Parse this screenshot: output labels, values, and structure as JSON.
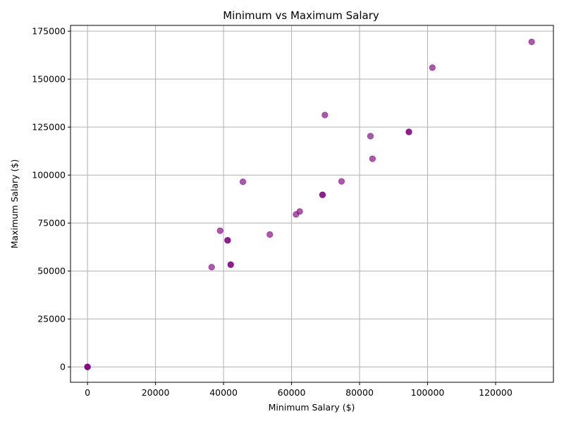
{
  "chart_data": {
    "type": "scatter",
    "title": "Minimum vs Maximum Salary",
    "xlabel": "Minimum Salary ($)",
    "ylabel": "Maximum Salary ($)",
    "xlim": [
      -5000,
      137000
    ],
    "ylim": [
      -8000,
      178000
    ],
    "xticks": [
      0,
      20000,
      40000,
      60000,
      80000,
      100000,
      120000
    ],
    "yticks": [
      0,
      25000,
      50000,
      75000,
      100000,
      125000,
      150000,
      175000
    ],
    "grid": true,
    "marker_color": "#800080",
    "marker_alpha": 0.65,
    "points": [
      {
        "x": 0,
        "y": 0
      },
      {
        "x": 0,
        "y": 0
      },
      {
        "x": 0,
        "y": 0
      },
      {
        "x": 36500,
        "y": 52000
      },
      {
        "x": 39000,
        "y": 71000
      },
      {
        "x": 41200,
        "y": 66000
      },
      {
        "x": 41200,
        "y": 66000
      },
      {
        "x": 42100,
        "y": 53300
      },
      {
        "x": 42100,
        "y": 53300
      },
      {
        "x": 45700,
        "y": 96500
      },
      {
        "x": 53600,
        "y": 69000
      },
      {
        "x": 61300,
        "y": 79500
      },
      {
        "x": 62400,
        "y": 81000
      },
      {
        "x": 69100,
        "y": 89700
      },
      {
        "x": 69100,
        "y": 89700
      },
      {
        "x": 69800,
        "y": 131300
      },
      {
        "x": 74700,
        "y": 96700
      },
      {
        "x": 83200,
        "y": 120300
      },
      {
        "x": 83800,
        "y": 108500
      },
      {
        "x": 94500,
        "y": 122500
      },
      {
        "x": 94500,
        "y": 122500
      },
      {
        "x": 101400,
        "y": 156000
      },
      {
        "x": 130600,
        "y": 169400
      }
    ]
  }
}
